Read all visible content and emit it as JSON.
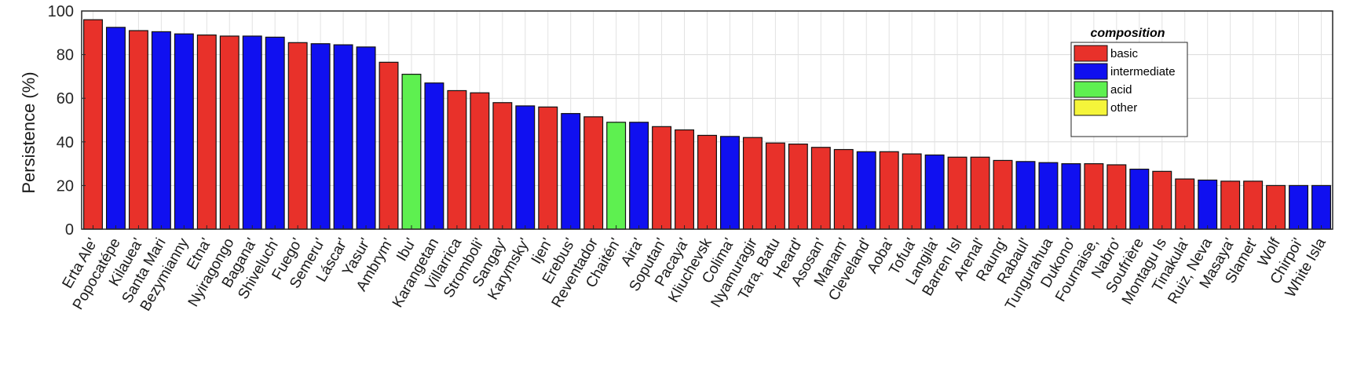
{
  "chart_data": {
    "type": "bar",
    "ylabel": "Persistence (%)",
    "xlabel": "",
    "ylim": [
      0,
      100
    ],
    "yticks": [
      "0",
      "20",
      "40",
      "60",
      "80",
      "100"
    ],
    "grid": true,
    "legend_position": "top-right",
    "legend_title": "composition",
    "legend": [
      {
        "key": "basic",
        "label": "basic",
        "color": "#e8312a"
      },
      {
        "key": "intermediate",
        "label": "intermediate",
        "color": "#1010f0"
      },
      {
        "key": "acid",
        "label": "acid",
        "color": "#5ef050"
      },
      {
        "key": "other",
        "label": "other",
        "color": "#f5f53a"
      }
    ],
    "categories": [
      "Erta Ale'",
      "Popocatépe",
      "Kilauea'",
      "Santa Mari",
      "Bezymianny",
      "Etna'",
      "Nyiragongo",
      "Bagana'",
      "Shiveluch'",
      "Fuego'",
      "Semeru'",
      "Láscar'",
      "Yasur'",
      "Ambrym'",
      "Ibu'",
      "Karangetan",
      "Villarrica",
      "Stromboli'",
      "Sangay'",
      "Karymsky'",
      "Ijen'",
      "Erebus'",
      "Reventador",
      "Chaitén'",
      "Aira'",
      "Soputan'",
      "Pacaya'",
      "Kliuchevsk",
      "Colima'",
      "Nyamuragir",
      "Tara, Batu",
      "Heard'",
      "Asosan'",
      "Manam'",
      "Cleveland'",
      "Aoba'",
      "Tofua'",
      "Langila'",
      "Barren Isl",
      "Arenal'",
      "Raung'",
      "Rabaul'",
      "Tungurahua",
      "Dukono'",
      "Fournaise,",
      "Nabro'",
      "Soufrière",
      "Montagu Is",
      "Tinakula'",
      "Ruiz, Neva",
      "Masaya'",
      "Slamet'",
      "Wolf",
      "Chirpoi'",
      "White Isla"
    ],
    "values": [
      96,
      92.5,
      91,
      90.5,
      89.5,
      89,
      88.5,
      88.5,
      88,
      85.5,
      85,
      84.5,
      83.5,
      76.5,
      71,
      67,
      63.5,
      62.5,
      58,
      56.5,
      56,
      53,
      51.5,
      49,
      49,
      47,
      45.5,
      43,
      42.5,
      42,
      39.5,
      39,
      37.5,
      36.5,
      35.5,
      35.5,
      34.5,
      34,
      33,
      33,
      31.5,
      31,
      30.5,
      30,
      30,
      29.5,
      27.5,
      26.5,
      23,
      22.5,
      22,
      22,
      20,
      20,
      20
    ],
    "composition": [
      "basic",
      "intermediate",
      "basic",
      "intermediate",
      "intermediate",
      "basic",
      "basic",
      "intermediate",
      "intermediate",
      "basic",
      "intermediate",
      "intermediate",
      "intermediate",
      "basic",
      "acid",
      "intermediate",
      "basic",
      "basic",
      "basic",
      "intermediate",
      "basic",
      "intermediate",
      "basic",
      "acid",
      "intermediate",
      "basic",
      "basic",
      "basic",
      "intermediate",
      "basic",
      "basic",
      "basic",
      "basic",
      "basic",
      "intermediate",
      "basic",
      "basic",
      "intermediate",
      "basic",
      "basic",
      "basic",
      "intermediate",
      "intermediate",
      "intermediate",
      "basic",
      "basic",
      "intermediate",
      "basic",
      "basic",
      "intermediate",
      "basic",
      "basic",
      "basic",
      "intermediate",
      "intermediate"
    ]
  }
}
